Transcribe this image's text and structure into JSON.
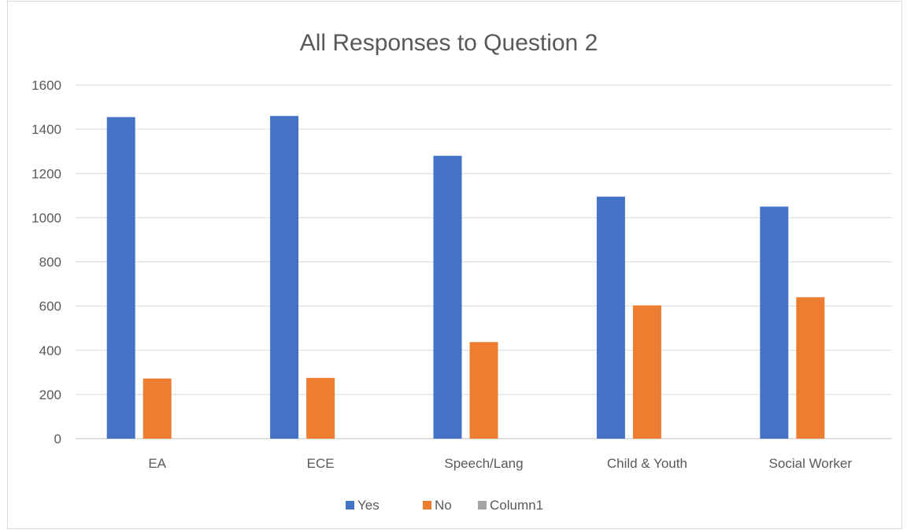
{
  "chart_data": {
    "type": "bar",
    "title": "All Responses to Question 2",
    "categories": [
      "EA",
      "ECE",
      "Speech/Lang",
      "Child & Youth",
      "Social Worker"
    ],
    "series": [
      {
        "name": "Yes",
        "color": "#4472c4",
        "values": [
          1455,
          1460,
          1280,
          1095,
          1050
        ]
      },
      {
        "name": "No",
        "color": "#ed7d31",
        "values": [
          272,
          275,
          437,
          603,
          640
        ]
      },
      {
        "name": "Column1",
        "color": "#a5a5a5",
        "values": [
          0,
          0,
          0,
          0,
          0
        ]
      }
    ],
    "ylim": [
      0,
      1600
    ],
    "yticks": [
      0,
      200,
      400,
      600,
      800,
      1000,
      1200,
      1400,
      1600
    ],
    "grid": true,
    "legend_position": "bottom"
  }
}
